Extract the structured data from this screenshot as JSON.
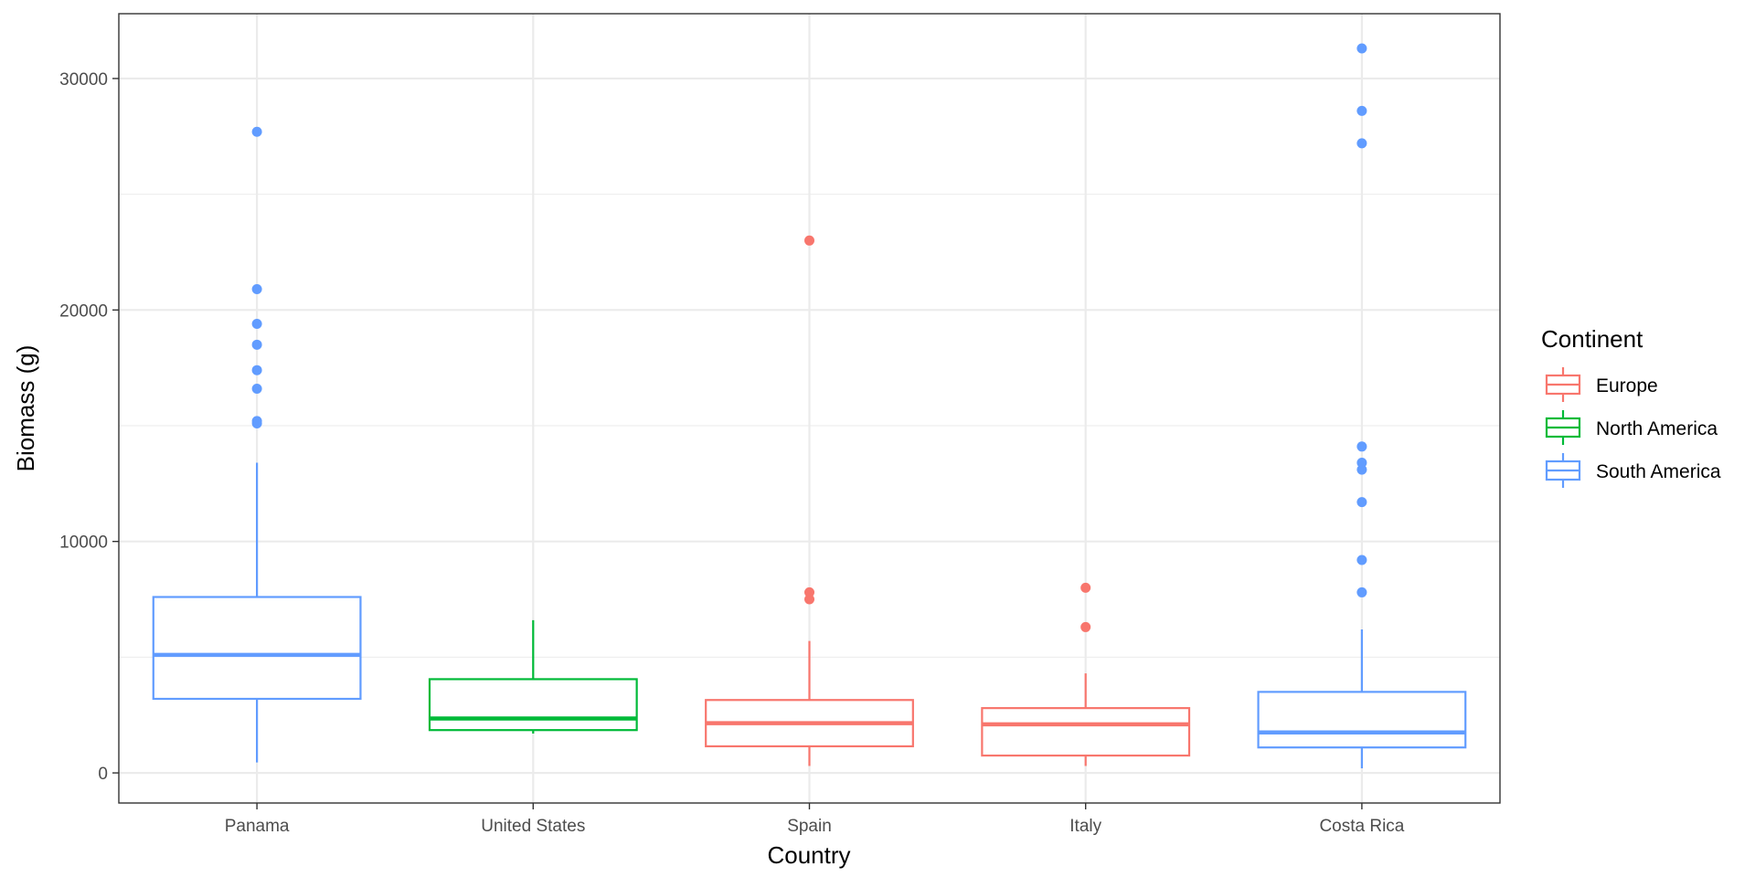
{
  "chart_data": {
    "type": "boxplot",
    "xlabel": "Country",
    "ylabel": "Biomass (g)",
    "ylim": [
      -1300,
      32800
    ],
    "yticks": [
      0,
      10000,
      20000,
      30000
    ],
    "ytick_labels": [
      "0",
      "10000",
      "20000",
      "30000"
    ],
    "grid": true,
    "legend": {
      "title": "Continent",
      "position": "right",
      "entries": [
        {
          "name": "Europe",
          "color": "#F8766D"
        },
        {
          "name": "North America",
          "color": "#00BA38"
        },
        {
          "name": "South America",
          "color": "#619CFF"
        }
      ]
    },
    "categories": [
      "Panama",
      "United States",
      "Spain",
      "Italy",
      "Costa Rica"
    ],
    "boxes": [
      {
        "category": "Panama",
        "continent": "South America",
        "whisker_low": 450,
        "q1": 3200,
        "median": 5100,
        "q3": 7600,
        "whisker_high": 13400,
        "outliers": [
          15100,
          15200,
          16600,
          17400,
          18500,
          19400,
          20900,
          27700
        ]
      },
      {
        "category": "United States",
        "continent": "North America",
        "whisker_low": 1700,
        "q1": 1850,
        "median": 2350,
        "q3": 4050,
        "whisker_high": 6600,
        "outliers": []
      },
      {
        "category": "Spain",
        "continent": "Europe",
        "whisker_low": 300,
        "q1": 1150,
        "median": 2150,
        "q3": 3150,
        "whisker_high": 5700,
        "outliers": [
          7500,
          7800,
          23000
        ]
      },
      {
        "category": "Italy",
        "continent": "Europe",
        "whisker_low": 300,
        "q1": 750,
        "median": 2100,
        "q3": 2800,
        "whisker_high": 4300,
        "outliers": [
          6300,
          8000
        ]
      },
      {
        "category": "Costa Rica",
        "continent": "South America",
        "whisker_low": 200,
        "q1": 1100,
        "median": 1750,
        "q3": 3500,
        "whisker_high": 6200,
        "outliers": [
          7800,
          9200,
          11700,
          13100,
          13400,
          14100,
          27200,
          28600,
          31300
        ]
      }
    ]
  }
}
